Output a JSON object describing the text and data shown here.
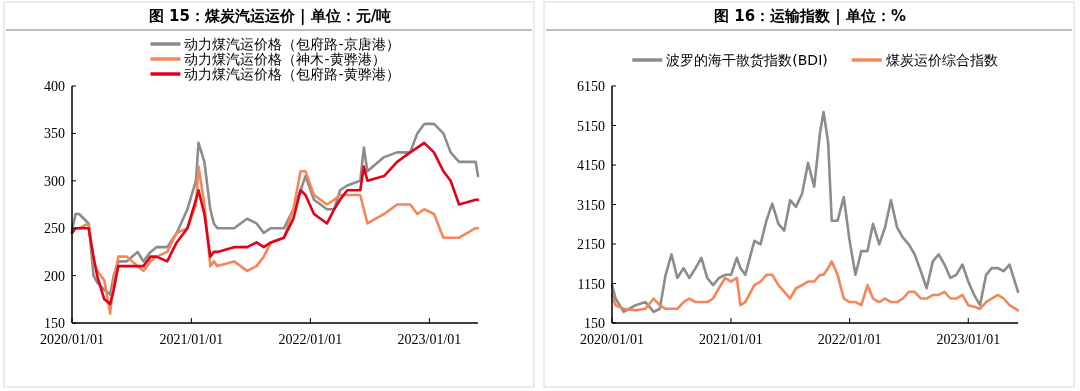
{
  "chart_data": [
    {
      "type": "line",
      "title": "图 15：煤炭汽运运价 | 单位：元/吨",
      "legend": "top",
      "grid": false,
      "marker": "none",
      "line_style": "solid",
      "x": [
        "2020-01-01",
        "2020-01-12",
        "2020-01-23",
        "2020-02-21",
        "2020-03-07",
        "2020-03-18",
        "2020-04-09",
        "2020-04-27",
        "2020-05-08",
        "2020-05-22",
        "2020-06-17",
        "2020-07-20",
        "2020-08-07",
        "2020-08-29",
        "2020-09-16",
        "2020-10-19",
        "2020-11-17",
        "2020-12-20",
        "2021-01-15",
        "2021-01-23",
        "2021-02-10",
        "2021-02-28",
        "2021-03-11",
        "2021-03-22",
        "2021-05-12",
        "2021-06-21",
        "2021-07-20",
        "2021-08-11",
        "2021-09-02",
        "2021-10-12",
        "2021-11-10",
        "2021-12-02",
        "2021-12-17",
        "2022-01-12",
        "2022-02-21",
        "2022-03-15",
        "2022-04-02",
        "2022-04-24",
        "2022-06-03",
        "2022-06-14",
        "2022-06-25",
        "2022-08-15",
        "2022-09-24",
        "2022-11-03",
        "2022-11-25",
        "2022-12-16",
        "2023-01-15",
        "2023-02-13",
        "2023-03-07",
        "2023-04-02",
        "2023-05-23",
        "2023-05-30"
      ],
      "xlim": [
        "2020-01-01",
        "2023-05-30"
      ],
      "xticks": [
        {
          "value": "2020-01-01",
          "label": "2020/01/01"
        },
        {
          "value": "2021-01-01",
          "label": "2021/01/01"
        },
        {
          "value": "2022-01-01",
          "label": "2022/01/01"
        },
        {
          "value": "2023-01-01",
          "label": "2023/01/01"
        }
      ],
      "ylim": [
        150,
        400
      ],
      "yticks": [
        150,
        200,
        250,
        300,
        350,
        400
      ],
      "series": [
        {
          "name": "动力煤汽运价格（包府路-京唐港）",
          "color": "#8c8c8c",
          "values": [
            248,
            265,
            265,
            255,
            200,
            193,
            185,
            180,
            200,
            215,
            215,
            225,
            215,
            225,
            230,
            230,
            245,
            270,
            300,
            340,
            320,
            270,
            255,
            250,
            250,
            260,
            255,
            245,
            250,
            250,
            270,
            290,
            305,
            280,
            270,
            270,
            290,
            295,
            300,
            335,
            310,
            325,
            330,
            330,
            350,
            360,
            360,
            350,
            330,
            320,
            320,
            305
          ]
        },
        {
          "name": "动力煤汽运价格（神木-黄骅港）",
          "color": "#f4875a",
          "values": [
            245,
            250,
            250,
            255,
            215,
            205,
            195,
            160,
            195,
            220,
            220,
            210,
            205,
            215,
            220,
            225,
            245,
            250,
            275,
            315,
            275,
            210,
            215,
            210,
            215,
            205,
            210,
            220,
            235,
            240,
            270,
            310,
            310,
            285,
            275,
            280,
            285,
            285,
            285,
            270,
            255,
            265,
            275,
            275,
            265,
            270,
            265,
            240,
            240,
            240,
            250,
            250
          ]
        },
        {
          "name": "动力煤汽运价格（包府路-黄骅港）",
          "color": "#e3001a",
          "values": [
            245,
            250,
            250,
            250,
            220,
            200,
            175,
            170,
            185,
            210,
            210,
            210,
            210,
            220,
            220,
            215,
            235,
            250,
            280,
            290,
            265,
            220,
            225,
            225,
            230,
            230,
            235,
            230,
            235,
            240,
            260,
            290,
            285,
            265,
            255,
            270,
            280,
            290,
            290,
            315,
            300,
            305,
            320,
            330,
            335,
            340,
            330,
            310,
            300,
            275,
            280,
            280
          ]
        }
      ]
    },
    {
      "type": "line",
      "title": "图 16：运输指数 | 单位：%",
      "legend": "top",
      "grid": false,
      "marker": "none",
      "line_style": "solid",
      "x": [
        "2020-01-01",
        "2020-01-12",
        "2020-02-06",
        "2020-03-14",
        "2020-04-13",
        "2020-05-08",
        "2020-05-27",
        "2020-06-14",
        "2020-07-02",
        "2020-07-20",
        "2020-08-08",
        "2020-08-26",
        "2020-09-14",
        "2020-10-02",
        "2020-10-20",
        "2020-11-07",
        "2020-11-25",
        "2020-12-14",
        "2021-01-01",
        "2021-01-19",
        "2021-01-30",
        "2021-02-14",
        "2021-03-14",
        "2021-04-02",
        "2021-04-20",
        "2021-05-08",
        "2021-05-27",
        "2021-06-14",
        "2021-07-02",
        "2021-07-20",
        "2021-08-08",
        "2021-08-26",
        "2021-09-14",
        "2021-10-02",
        "2021-10-13",
        "2021-10-27",
        "2021-11-07",
        "2021-11-25",
        "2021-12-14",
        "2022-01-01",
        "2022-01-19",
        "2022-02-06",
        "2022-02-25",
        "2022-03-14",
        "2022-04-02",
        "2022-04-20",
        "2022-05-08",
        "2022-05-27",
        "2022-06-14",
        "2022-07-02",
        "2022-07-20",
        "2022-08-08",
        "2022-08-26",
        "2022-09-14",
        "2022-10-02",
        "2022-10-20",
        "2022-11-07",
        "2022-11-25",
        "2022-12-14",
        "2023-01-01",
        "2023-01-19",
        "2023-02-06",
        "2023-02-25",
        "2023-03-14",
        "2023-04-02",
        "2023-04-20",
        "2023-05-08",
        "2023-06-03"
      ],
      "xlim": [
        "2020-01-01",
        "2023-06-03"
      ],
      "xticks": [
        {
          "value": "2020-01-01",
          "label": "2020/01/01"
        },
        {
          "value": "2021-01-01",
          "label": "2021/01/01"
        },
        {
          "value": "2022-01-01",
          "label": "2022/01/01"
        },
        {
          "value": "2023-01-01",
          "label": "2023/01/01"
        }
      ],
      "ylim": [
        150,
        6150
      ],
      "yticks": [
        150,
        1150,
        2150,
        3150,
        4150,
        5150,
        6150
      ],
      "series": [
        {
          "name": "波罗的海干散货指数(BDI)",
          "color": "#8c8c8c",
          "values": [
            1110,
            770,
            430,
            600,
            680,
            430,
            510,
            1370,
            1890,
            1290,
            1540,
            1290,
            1540,
            1800,
            1290,
            1110,
            1290,
            1370,
            1370,
            1800,
            1540,
            1370,
            2230,
            2140,
            2740,
            3170,
            2660,
            2490,
            3260,
            3090,
            3430,
            4200,
            3600,
            4970,
            5490,
            4720,
            2740,
            2740,
            3340,
            2230,
            1370,
            1970,
            1970,
            2660,
            2140,
            2570,
            3260,
            2570,
            2310,
            2140,
            1890,
            1460,
            1030,
            1710,
            1890,
            1630,
            1290,
            1370,
            1630,
            1200,
            860,
            600,
            1370,
            1540,
            1540,
            1460,
            1630,
            940
          ]
        },
        {
          "name": "煤炭运价综合指数",
          "color": "#f4875a",
          "values": [
            860,
            600,
            510,
            470,
            510,
            770,
            600,
            510,
            510,
            510,
            680,
            770,
            680,
            680,
            680,
            770,
            1030,
            1290,
            1200,
            1290,
            600,
            680,
            1110,
            1200,
            1370,
            1370,
            1110,
            940,
            770,
            1030,
            1110,
            1200,
            1200,
            1370,
            1370,
            1540,
            1710,
            1370,
            770,
            680,
            680,
            600,
            1110,
            770,
            680,
            770,
            680,
            680,
            770,
            940,
            940,
            770,
            770,
            860,
            860,
            940,
            770,
            770,
            860,
            600,
            560,
            510,
            680,
            770,
            860,
            770,
            600,
            470
          ]
        }
      ]
    }
  ]
}
